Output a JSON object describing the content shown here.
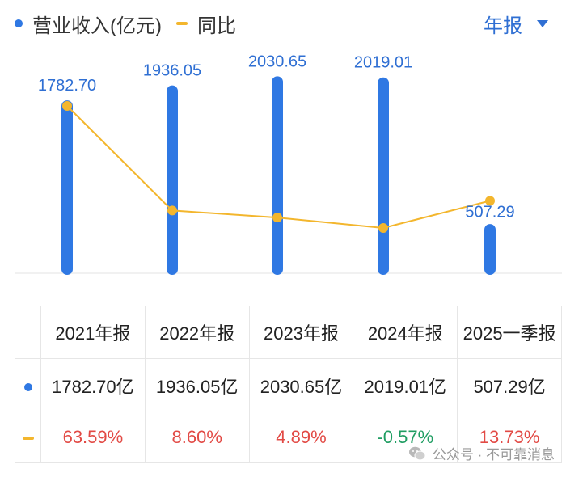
{
  "legend": {
    "series1": "营业收入(亿元)",
    "series2": "同比"
  },
  "period_selector": {
    "label": "年报"
  },
  "colors": {
    "bar": "#2f78e3",
    "line": "#f3b62d",
    "positive": "#e24a45",
    "negative": "#1f9d62"
  },
  "chart_data": {
    "type": "bar",
    "categories": [
      "2021年报",
      "2022年报",
      "2023年报",
      "2024年报",
      "2025一季报"
    ],
    "series": [
      {
        "name": "营业收入(亿元)",
        "type": "bar",
        "values": [
          1782.7,
          1936.05,
          2030.65,
          2019.01,
          507.29
        ],
        "labels": [
          "1782.70",
          "1936.05",
          "2030.65",
          "2019.01",
          "507.29"
        ]
      },
      {
        "name": "同比",
        "type": "line",
        "values": [
          63.59,
          8.6,
          4.89,
          -0.57,
          13.73
        ]
      }
    ],
    "grid": false,
    "legend_position": "top-left"
  },
  "table": {
    "headers": [
      "2021年报",
      "2022年报",
      "2023年报",
      "2024年报",
      "2025一季报"
    ],
    "revenue": [
      "1782.70亿",
      "1936.05亿",
      "2030.65亿",
      "2019.01亿",
      "507.29亿"
    ],
    "yoy": [
      "63.59%",
      "8.60%",
      "4.89%",
      "-0.57%",
      "13.73%"
    ]
  },
  "watermark": {
    "text": "公众号 · 不可靠消息",
    "icon": "wechat-icon"
  }
}
